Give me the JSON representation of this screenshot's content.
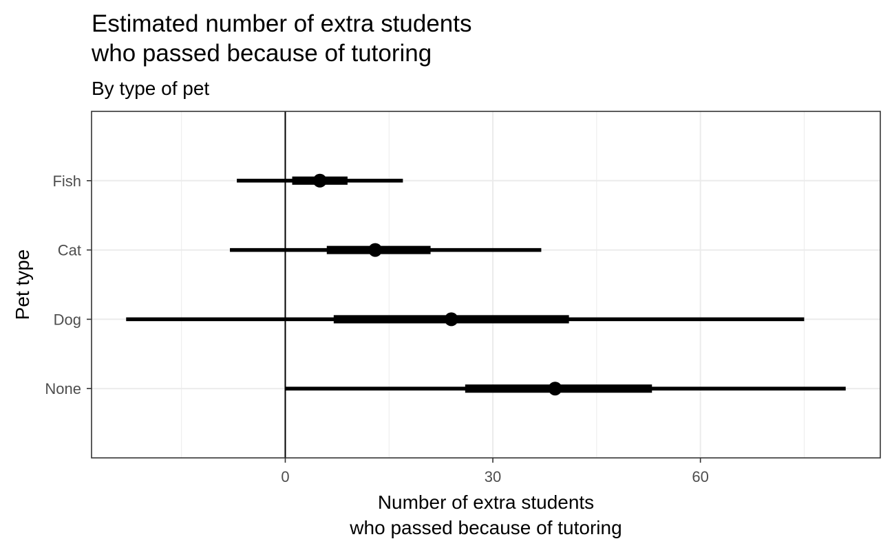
{
  "chart_data": {
    "type": "pointrange",
    "title": [
      "Estimated number of extra students",
      "who passed because of tutoring"
    ],
    "subtitle": "By type of pet",
    "xlabel": [
      "Number of extra students",
      "who passed because of tutoring"
    ],
    "ylabel": "Pet type",
    "xlim": [
      -28,
      86
    ],
    "x_ticks": [
      0,
      30,
      60
    ],
    "x_tick_labels": [
      "0",
      "30",
      "60"
    ],
    "categories": [
      "None",
      "Dog",
      "Cat",
      "Fish"
    ],
    "reference_line_x": 0,
    "series": [
      {
        "category": "None",
        "estimate": 39,
        "inner": [
          26,
          53
        ],
        "outer": [
          0,
          81
        ]
      },
      {
        "category": "Dog",
        "estimate": 24,
        "inner": [
          7,
          41
        ],
        "outer": [
          -23,
          75
        ]
      },
      {
        "category": "Cat",
        "estimate": 13,
        "inner": [
          6,
          21
        ],
        "outer": [
          -8,
          37
        ]
      },
      {
        "category": "Fish",
        "estimate": 5,
        "inner": [
          1,
          9
        ],
        "outer": [
          -7,
          17
        ]
      }
    ],
    "grid": true,
    "legend": "none"
  }
}
